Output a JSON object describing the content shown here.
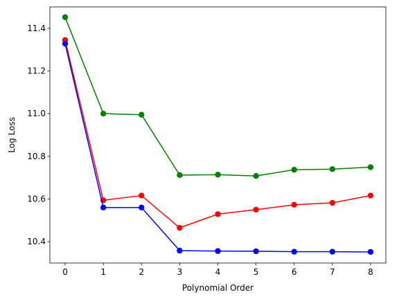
{
  "chart_data": {
    "type": "line",
    "title": "",
    "xlabel": "Polynomial Order",
    "ylabel": "Log Loss",
    "xlim": [
      -0.4,
      8.4
    ],
    "ylim": [
      10.3,
      11.5
    ],
    "x_ticks": [
      0,
      1,
      2,
      3,
      4,
      5,
      6,
      7,
      8
    ],
    "x_tick_labels": [
      "0",
      "1",
      "2",
      "3",
      "4",
      "5",
      "6",
      "7",
      "8"
    ],
    "y_ticks": [
      10.4,
      10.6,
      10.8,
      11.0,
      11.2,
      11.4
    ],
    "y_tick_labels": [
      "10.4",
      "10.6",
      "10.8",
      "11.0",
      "11.2",
      "11.4"
    ],
    "grid": false,
    "legend": "none",
    "x": [
      0,
      1,
      2,
      3,
      4,
      5,
      6,
      7,
      8
    ],
    "series": [
      {
        "color": "#008000",
        "values": [
          11.452,
          11.0,
          10.995,
          10.712,
          10.714,
          10.708,
          10.737,
          10.74,
          10.749
        ]
      },
      {
        "color": "#ff0000",
        "values": [
          11.345,
          10.594,
          10.616,
          10.465,
          10.529,
          10.55,
          10.573,
          10.582,
          10.616
        ]
      },
      {
        "color": "#0000ff",
        "values": [
          11.328,
          10.56,
          10.56,
          10.358,
          10.356,
          10.355,
          10.353,
          10.353,
          10.352
        ]
      }
    ]
  }
}
